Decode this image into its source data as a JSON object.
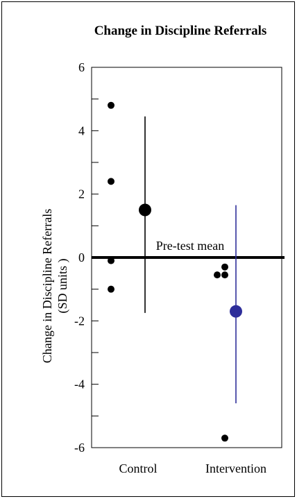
{
  "chart_data": {
    "type": "scatter",
    "title": "Change in Discipline Referrals",
    "ylabel_lines": [
      "Change in Discipline Referrals",
      "(SD units )"
    ],
    "xlabel": "",
    "categories": [
      "Control",
      "Intervention"
    ],
    "ylim": [
      -6,
      6
    ],
    "yticks": [
      6,
      4,
      2,
      0,
      -2,
      -4,
      -6
    ],
    "ytick_labels": [
      "6",
      "4",
      "2",
      "0",
      "-2",
      "-4",
      "-6"
    ],
    "grid": false,
    "reference_line": {
      "y": 0,
      "label": "Pre-test mean"
    },
    "series": [
      {
        "category": "Control",
        "color": "#000000",
        "individual_points": [
          {
            "x_offset": 0,
            "y": 4.8
          },
          {
            "x_offset": 0,
            "y": 2.4
          },
          {
            "x_offset": 0,
            "y": -0.1
          },
          {
            "x_offset": 0,
            "y": -1.0
          }
        ],
        "mean": 1.5,
        "error_bar": {
          "low": -1.75,
          "high": 4.45
        }
      },
      {
        "category": "Intervention",
        "color": "#2e2e9a",
        "individual_points": [
          {
            "x_offset": -1,
            "y": -0.55
          },
          {
            "x_offset": 0,
            "y": -0.55
          },
          {
            "x_offset": 0,
            "y": -0.3
          },
          {
            "x_offset": 0,
            "y": -5.7
          }
        ],
        "mean": -1.7,
        "error_bar": {
          "low": -4.6,
          "high": 1.65
        }
      }
    ]
  }
}
